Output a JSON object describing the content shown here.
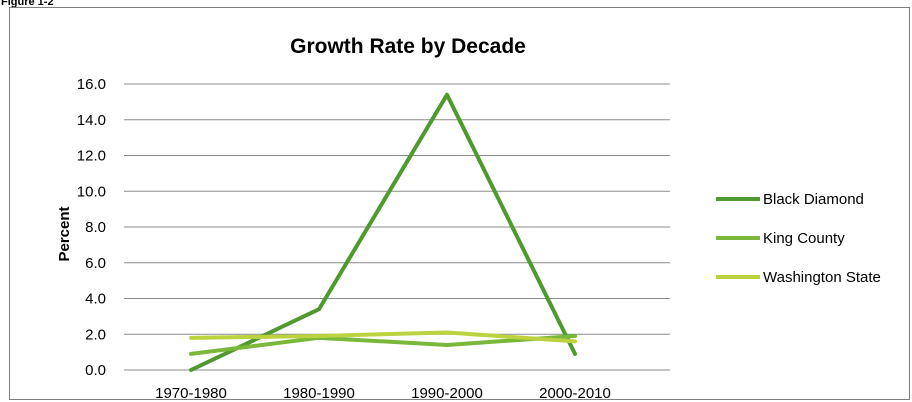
{
  "figure_label": "Figure 1-2",
  "chart_data": {
    "type": "line",
    "title": "Growth Rate by Decade",
    "xlabel": "",
    "ylabel": "Percent",
    "categories": [
      "1970-1980",
      "1980-1990",
      "1990-2000",
      "2000-2010"
    ],
    "ylim": [
      0,
      16
    ],
    "yticks": [
      "0.0",
      "2.0",
      "4.0",
      "6.0",
      "8.0",
      "10.0",
      "12.0",
      "14.0",
      "16.0"
    ],
    "grid": true,
    "legend_position": "right",
    "series": [
      {
        "name": "Black Diamond",
        "values": [
          0.0,
          3.4,
          15.4,
          0.9
        ],
        "color": "#4e9a2e"
      },
      {
        "name": "King County",
        "values": [
          0.9,
          1.8,
          1.4,
          1.9
        ],
        "color": "#79b83a"
      },
      {
        "name": "Washington State",
        "values": [
          1.8,
          1.9,
          2.1,
          1.6
        ],
        "color": "#bcd33f"
      }
    ]
  }
}
